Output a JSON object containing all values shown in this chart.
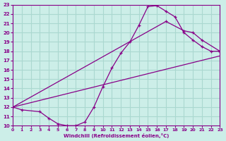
{
  "xlabel": "Windchill (Refroidissement éolien,°C)",
  "bg_color": "#cceee8",
  "grid_color": "#aad8d0",
  "line_color": "#880088",
  "xlim": [
    0,
    23
  ],
  "ylim": [
    10,
    23
  ],
  "xticks": [
    0,
    1,
    2,
    3,
    4,
    5,
    6,
    7,
    8,
    9,
    10,
    11,
    12,
    13,
    14,
    15,
    16,
    17,
    18,
    19,
    20,
    21,
    22,
    23
  ],
  "yticks": [
    10,
    11,
    12,
    13,
    14,
    15,
    16,
    17,
    18,
    19,
    20,
    21,
    22,
    23
  ],
  "line1_x": [
    0,
    1,
    3,
    4,
    5,
    6,
    7,
    8,
    9,
    10,
    11,
    12,
    13,
    14,
    15,
    16,
    17,
    18,
    19,
    20,
    21,
    22,
    23
  ],
  "line1_y": [
    12,
    11.7,
    11.5,
    10.8,
    10.2,
    10.0,
    10.0,
    10.4,
    12.0,
    14.2,
    16.2,
    17.8,
    19.0,
    20.8,
    22.8,
    22.9,
    22.3,
    21.7,
    20.0,
    19.2,
    18.5,
    18.0,
    18.0
  ],
  "line2_x": [
    0,
    17,
    19,
    20,
    21,
    23
  ],
  "line2_y": [
    12,
    21.2,
    20.2,
    20.0,
    19.2,
    18.0
  ],
  "line3_x": [
    0,
    23
  ],
  "line3_y": [
    12,
    17.5
  ]
}
